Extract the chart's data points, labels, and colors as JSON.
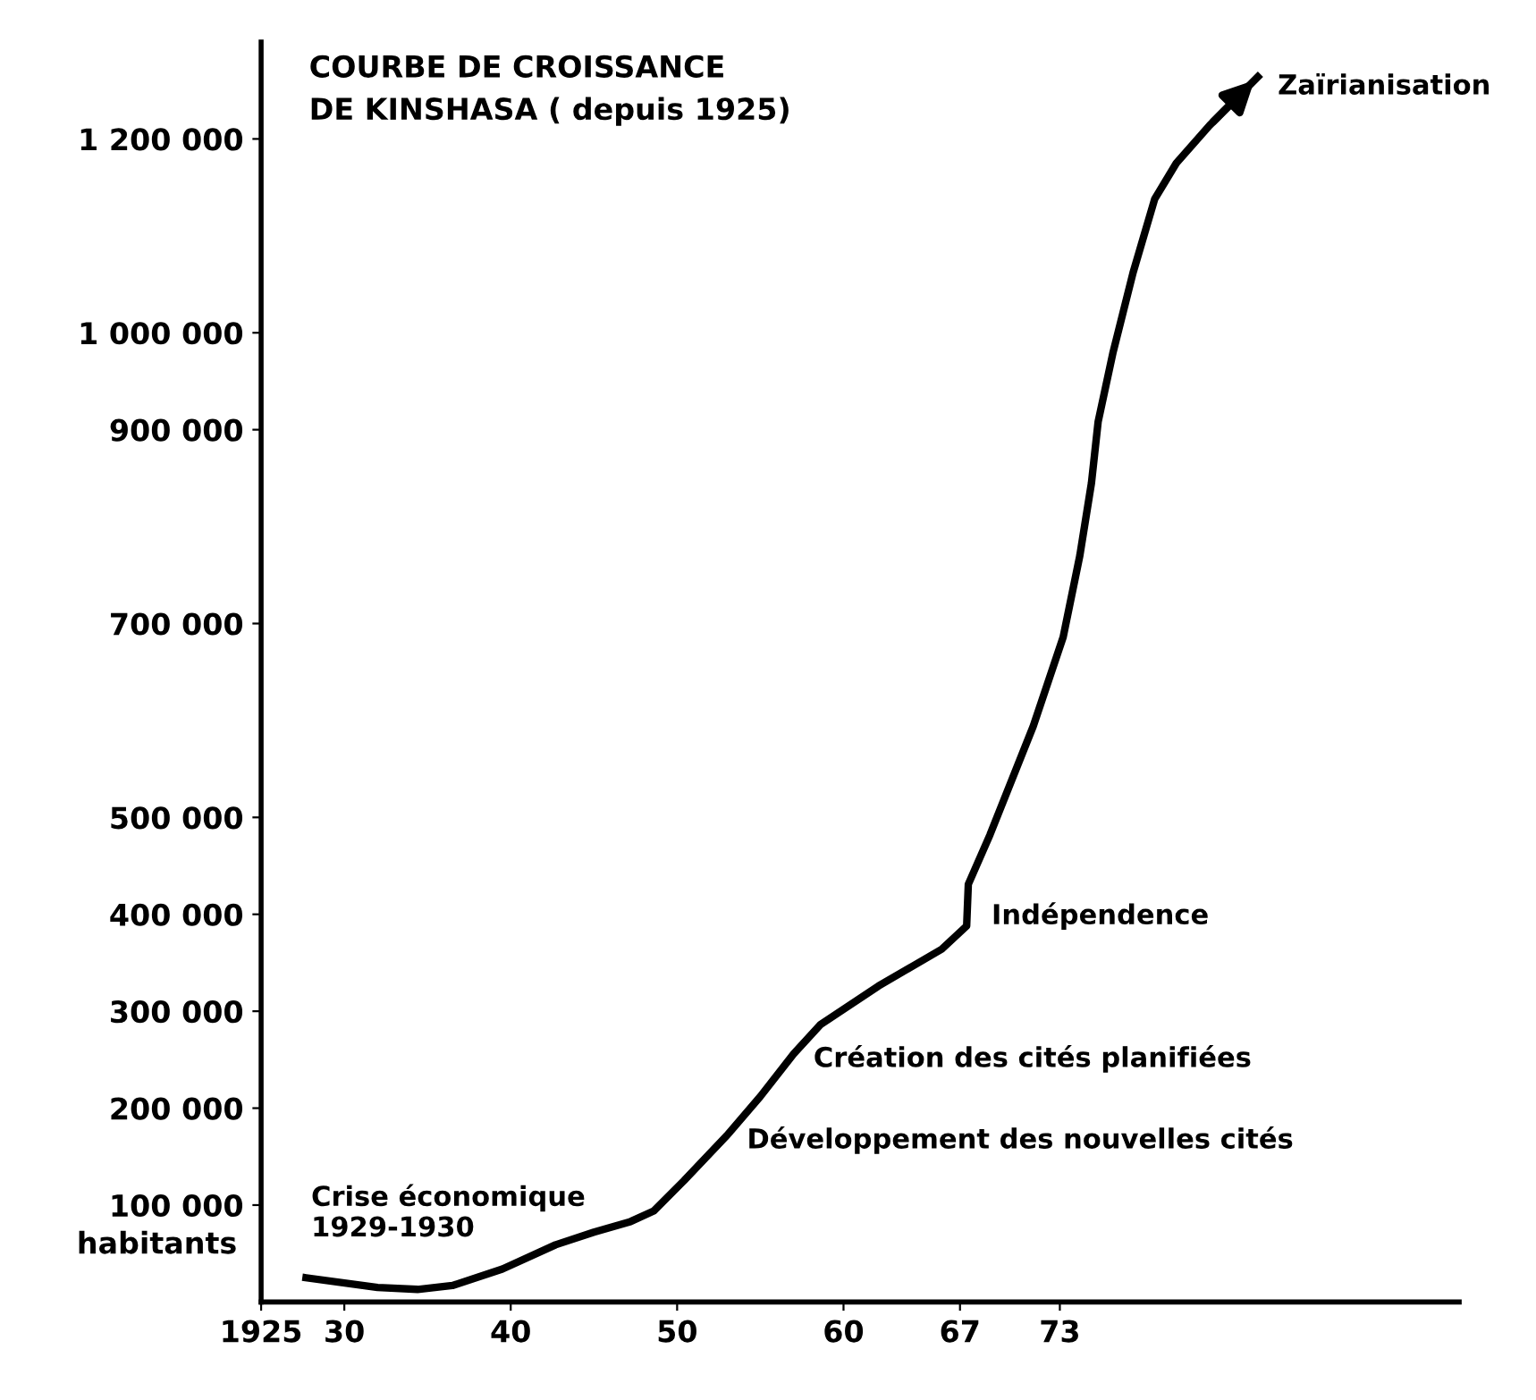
{
  "chart_data": {
    "type": "line",
    "title": "COURBE DE CROISSANCE\nDE KINSHASA ( depuis 1925)",
    "ylabel": "habitants",
    "x": [
      1927.7,
      1932,
      1934.4,
      1936.5,
      1939.5,
      1942.7,
      1945,
      1947.2,
      1948.6,
      1950.4,
      1953,
      1955,
      1957,
      1958.6,
      1962.1,
      1965.9,
      1967.4,
      1967.5,
      1968.8,
      1971.4,
      1973.2,
      1974.2,
      1974.9,
      1975.3,
      1976.2,
      1977.4,
      1978.7,
      1980,
      1982,
      1984.9
    ],
    "series": [
      {
        "color": "#000000",
        "values": [
          25000,
          15000,
          13000,
          17000,
          34000,
          59000,
          72000,
          83000,
          94000,
          125000,
          172000,
          212000,
          256000,
          286000,
          326000,
          364000,
          388000,
          431000,
          482000,
          594000,
          686000,
          770000,
          845000,
          908000,
          980000,
          1062000,
          1138000,
          1175000,
          1214000,
          1264000
        ]
      }
    ],
    "xlim": [
      1925,
      1997
    ],
    "ylim": [
      0,
      1300000
    ],
    "xticks": [
      {
        "value": 1925,
        "label": "1925"
      },
      {
        "value": 1930,
        "label": "30"
      },
      {
        "value": 1940,
        "label": "40"
      },
      {
        "value": 1950,
        "label": "50"
      },
      {
        "value": 1960,
        "label": "60"
      },
      {
        "value": 1967,
        "label": "67"
      },
      {
        "value": 1973,
        "label": "73"
      }
    ],
    "yticks": [
      {
        "value": 100000,
        "label": "100 000"
      },
      {
        "value": 200000,
        "label": "200 000"
      },
      {
        "value": 300000,
        "label": "300 000"
      },
      {
        "value": 400000,
        "label": "400 000"
      },
      {
        "value": 500000,
        "label": "500 000"
      },
      {
        "value": 700000,
        "label": "700 000"
      },
      {
        "value": 900000,
        "label": "900 000"
      },
      {
        "value": 1000000,
        "label": "1 000 000"
      },
      {
        "value": 1200000,
        "label": "1 200 000"
      }
    ],
    "annotations": [
      {
        "text": "Crise économique\n1929-1930",
        "x": 1929.5,
        "y": 20000
      },
      {
        "text": "Développement des nouvelles cités",
        "x": 1953,
        "y": 172000
      },
      {
        "text": "Création des cités planifiées",
        "x": 1957,
        "y": 256000
      },
      {
        "text": "Indépendence",
        "x": 1967.4,
        "y": 388000
      },
      {
        "text": "Zaïrianisation",
        "x": 1984.9,
        "y": 1264000
      }
    ],
    "grid": false,
    "legend": false,
    "marker": "none",
    "line_style": "solid"
  }
}
